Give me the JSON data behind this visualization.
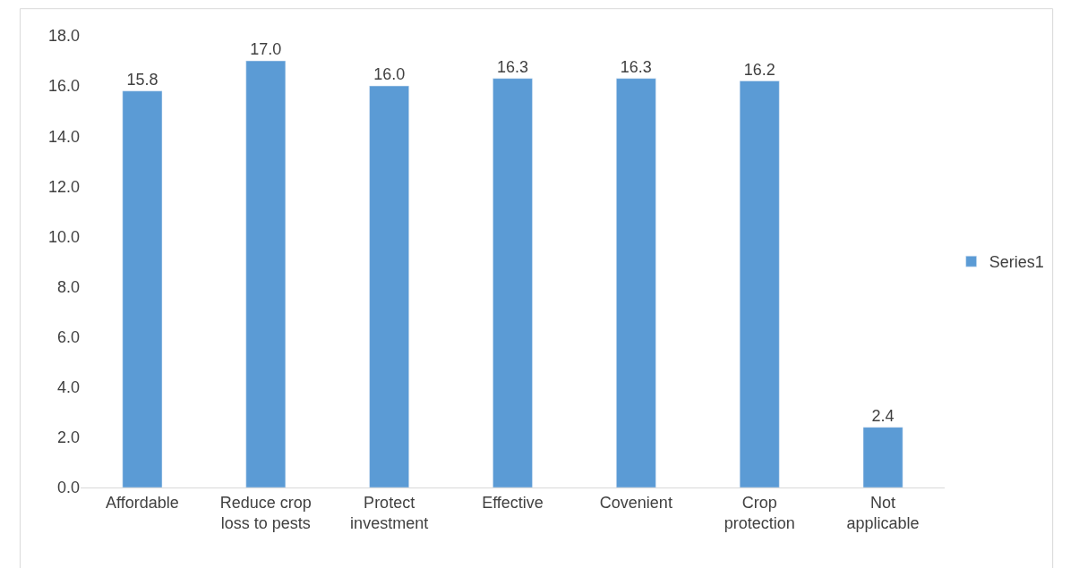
{
  "chart_data": {
    "type": "bar",
    "categories": [
      "Affordable",
      "Reduce crop loss to pests",
      "Protect investment",
      "Effective",
      "Covenient",
      "Crop protection",
      "Not applicable"
    ],
    "series": [
      {
        "name": "Series1",
        "color": "#5b9bd5",
        "values": [
          15.8,
          17.0,
          16.0,
          16.3,
          16.3,
          16.2,
          2.4
        ],
        "value_labels": [
          "15.8",
          "17.0",
          "16.0",
          "16.3",
          "16.3",
          "16.2",
          "2.4"
        ]
      }
    ],
    "ylim": [
      0,
      18
    ],
    "yticks": [
      {
        "value": 0,
        "label": "0.0"
      },
      {
        "value": 2,
        "label": "2.0"
      },
      {
        "value": 4,
        "label": "4.0"
      },
      {
        "value": 6,
        "label": "6.0"
      },
      {
        "value": 8,
        "label": "8.0"
      },
      {
        "value": 10,
        "label": "10.0"
      },
      {
        "value": 12,
        "label": "12.0"
      },
      {
        "value": 14,
        "label": "14.0"
      },
      {
        "value": 16,
        "label": "16.0"
      },
      {
        "value": 18,
        "label": "18.0"
      }
    ],
    "grid": false,
    "legend": "right"
  }
}
